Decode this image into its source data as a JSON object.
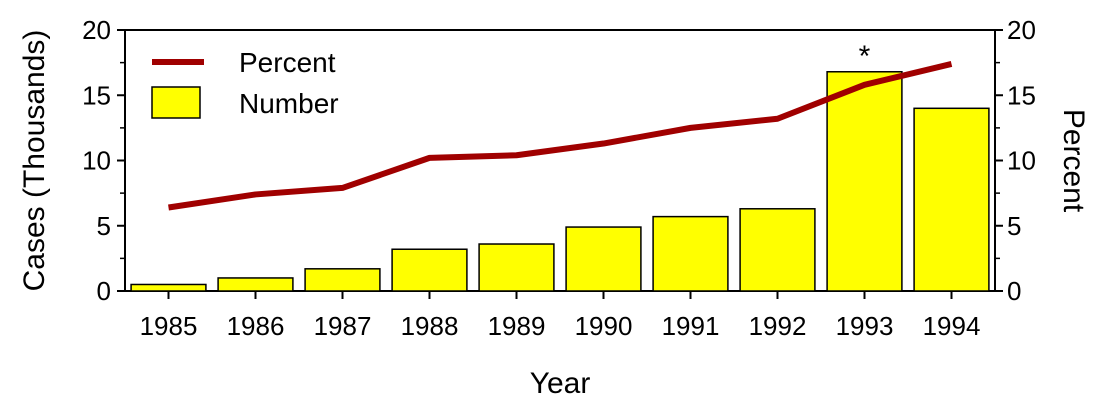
{
  "chart_data": {
    "type": "bar",
    "categories": [
      "1985",
      "1986",
      "1987",
      "1988",
      "1989",
      "1990",
      "1991",
      "1992",
      "1993",
      "1994"
    ],
    "series": [
      {
        "name": "Number",
        "type": "bar",
        "axis": "left",
        "color": "#ffff00",
        "values": [
          0.5,
          1.0,
          1.7,
          3.2,
          3.6,
          4.9,
          5.7,
          6.3,
          16.8,
          14.0
        ]
      },
      {
        "name": "Percent",
        "type": "line",
        "axis": "right",
        "color": "#a00000",
        "values": [
          6.4,
          7.4,
          7.9,
          10.2,
          10.4,
          11.3,
          12.5,
          13.2,
          15.8,
          17.4
        ]
      }
    ],
    "xlabel": "Year",
    "ylabel": "Cases (Thousands)",
    "ylabel_right": "Percent",
    "ylim": [
      0,
      20
    ],
    "ylim_right": [
      0,
      20
    ],
    "yticks": [
      "0",
      "5",
      "10",
      "15",
      "20"
    ],
    "yticks_right": [
      "0",
      "5",
      "10",
      "15",
      "20"
    ],
    "grid": false,
    "legend": {
      "position": "top-left",
      "entries": [
        "Percent",
        "Number"
      ]
    },
    "annotations": [
      {
        "category": "1993",
        "text": "*"
      }
    ]
  }
}
